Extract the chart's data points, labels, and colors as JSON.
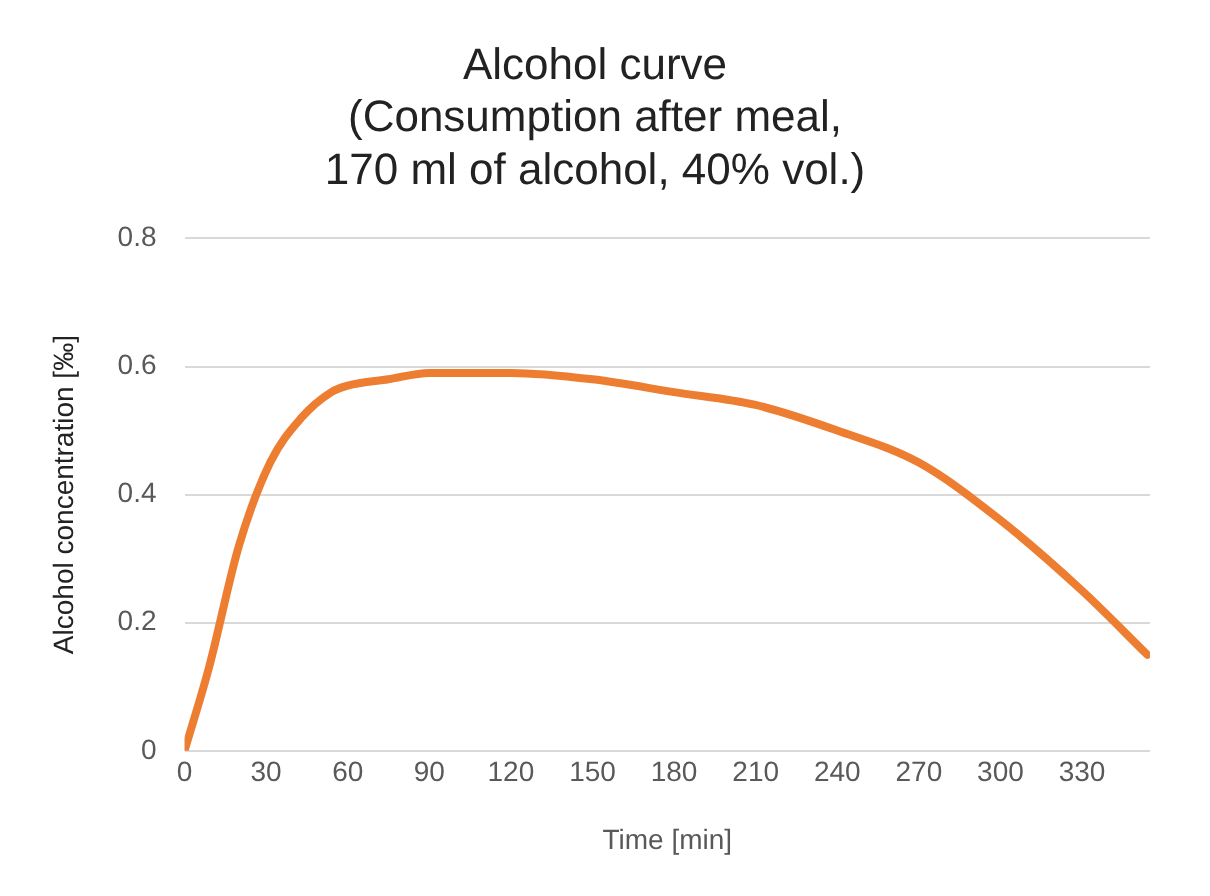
{
  "chart_data": {
    "type": "line",
    "title": "Alcohol curve\n(Consumption after meal,\n170 ml of alcohol, 40% vol.)",
    "xlabel": "Time [min]",
    "ylabel": "Alcohol concentration [‰]",
    "x": [
      0,
      9,
      20,
      31.5,
      43,
      54,
      60,
      75,
      90,
      105,
      120,
      150,
      180,
      210,
      240,
      270,
      300,
      330,
      354
    ],
    "series": [
      {
        "color": "#ed7d31",
        "values": [
          0,
          0.13,
          0.32,
          0.45,
          0.52,
          0.56,
          0.57,
          0.58,
          0.59,
          0.59,
          0.59,
          0.58,
          0.56,
          0.54,
          0.5,
          0.45,
          0.36,
          0.25,
          0.15
        ]
      }
    ],
    "xlim": [
      0,
      355
    ],
    "xticks": [
      0,
      30,
      60,
      90,
      120,
      150,
      180,
      210,
      240,
      270,
      300,
      330
    ],
    "ylim": [
      0,
      0.8
    ],
    "yticks": [
      0,
      0.2,
      0.4,
      0.6,
      0.8
    ],
    "grid": "y",
    "legend": false,
    "marker": "none",
    "line_style": "solid"
  }
}
